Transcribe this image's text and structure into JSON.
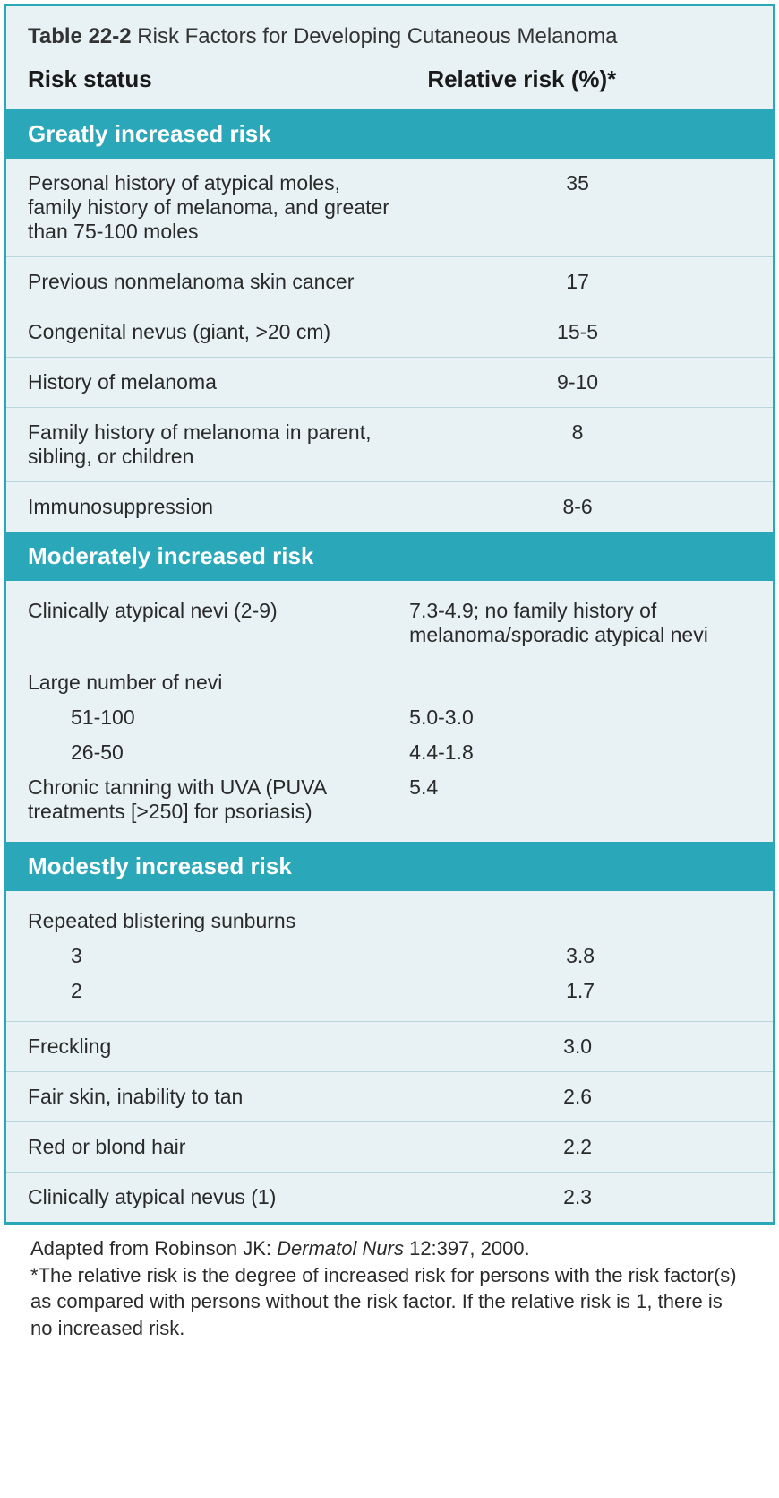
{
  "colors": {
    "border": "#2aa7b8",
    "header_bg": "#2aa7b8",
    "header_text": "#ffffff",
    "body_bg": "#e8f2f5",
    "row_border": "#b9d6dc",
    "text": "#2a2a2a"
  },
  "title_prefix": "Table 22-2",
  "title_rest": " Risk Factors for Developing Cutaneous Melanoma",
  "columns": {
    "left": "Risk status",
    "right": "Relative risk (%)*"
  },
  "sections": [
    {
      "heading": "Greatly increased risk",
      "rows": [
        {
          "label": "Personal history of atypical moles, family history of melanoma, and greater than 75-100 moles",
          "value": "35",
          "align": "center"
        },
        {
          "label": "Previous nonmelanoma skin cancer",
          "value": "17",
          "align": "center"
        },
        {
          "label": "Congenital nevus (giant, >20 cm)",
          "value": "15-5",
          "align": "center"
        },
        {
          "label": "History of melanoma",
          "value": "9-10",
          "align": "center"
        },
        {
          "label": "Family history of melanoma in parent, sibling, or children",
          "value": "8",
          "align": "center"
        },
        {
          "label": "Immunosuppression",
          "value": "8-6",
          "align": "center"
        }
      ]
    },
    {
      "heading": "Moderately increased risk",
      "multi": [
        {
          "lines": [
            {
              "label": "Clinically atypical nevi (2-9)",
              "value": "7.3-4.9; no family history of melanoma/sporadic atypical nevi",
              "align": "left"
            },
            {
              "label": "Large number of nevi",
              "value": "",
              "gap_top": true
            },
            {
              "label": "51-100",
              "value": "5.0-3.0",
              "indent": true,
              "align": "left"
            },
            {
              "label": "26-50",
              "value": "4.4-1.8",
              "indent": true,
              "align": "left"
            },
            {
              "label": "Chronic tanning with UVA (PUVA treatments [>250] for psoriasis)",
              "value": "5.4",
              "align": "left"
            }
          ]
        }
      ]
    },
    {
      "heading": "Modestly increased risk",
      "mixed": [
        {
          "type": "multi",
          "lines": [
            {
              "label": "Repeated blistering sunburns",
              "value": ""
            },
            {
              "label": "3",
              "value": "3.8",
              "indent": true,
              "align": "center"
            },
            {
              "label": "2",
              "value": "1.7",
              "indent": true,
              "align": "center"
            }
          ]
        },
        {
          "type": "row",
          "label": "Freckling",
          "value": "3.0",
          "align": "center"
        },
        {
          "type": "row",
          "label": "Fair skin, inability to tan",
          "value": "2.6",
          "align": "center"
        },
        {
          "type": "row",
          "label": "Red or blond hair",
          "value": "2.2",
          "align": "center"
        },
        {
          "type": "row",
          "label": "Clinically atypical nevus (1)",
          "value": "2.3",
          "align": "center"
        }
      ]
    }
  ],
  "footnote": {
    "line1_pre": "Adapted from Robinson JK: ",
    "line1_italic": "Dermatol Nurs",
    "line1_post": " 12:397, 2000.",
    "line2": "*The relative risk is the degree of increased risk for persons with the risk factor(s) as compared with persons without the risk factor. If the relative risk is 1, there is no increased risk."
  }
}
